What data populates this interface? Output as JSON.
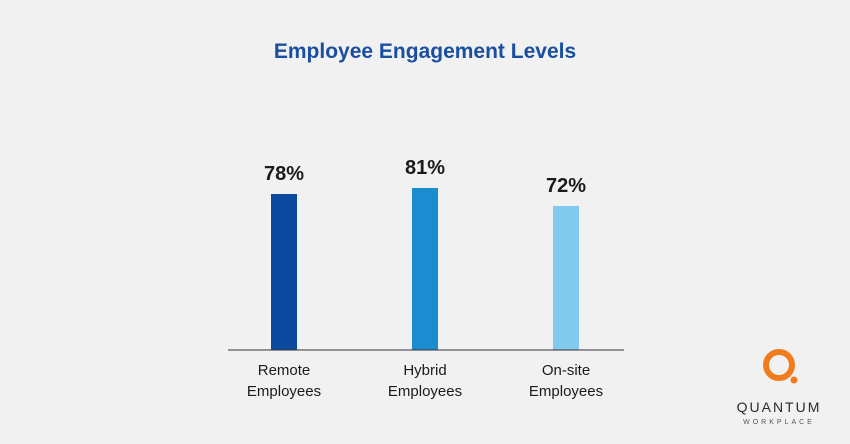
{
  "chart_data": {
    "type": "bar",
    "title": "Employee Engagement Levels",
    "categories": [
      [
        "Remote",
        "Employees"
      ],
      [
        "Hybrid",
        "Employees"
      ],
      [
        "On-site",
        "Employees"
      ]
    ],
    "values": [
      78,
      81,
      72
    ],
    "data_labels": [
      "78%",
      "81%",
      "72%"
    ],
    "colors": [
      "#0b4a9e",
      "#1a8ccf",
      "#82c9ee"
    ],
    "ylim": [
      0,
      100
    ],
    "grid": false,
    "legend": "none"
  },
  "logo": {
    "brand": "QUANTUM",
    "sub": "WORKPLACE",
    "colors": {
      "ring": "#f07c1e",
      "text": "#2a2a2a"
    }
  }
}
